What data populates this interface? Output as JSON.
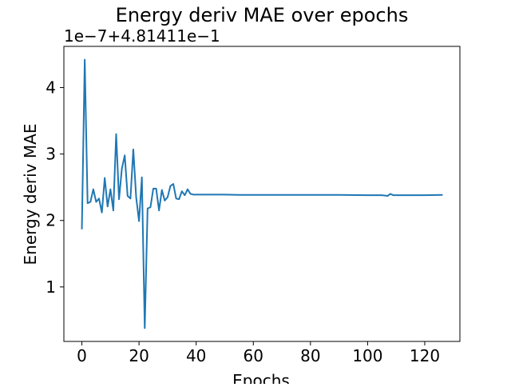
{
  "chart_data": {
    "type": "line",
    "title": "Energy deriv MAE over epochs",
    "xlabel": "Epochs",
    "ylabel": "Energy deriv MAE",
    "offset_label": "1e−7+4.81411e−1",
    "xlim": [
      -6.3,
      132.3
    ],
    "ylim": [
      0.18,
      4.62
    ],
    "x_ticks": [
      0,
      20,
      40,
      60,
      80,
      100,
      120
    ],
    "y_ticks": [
      1,
      2,
      3,
      4
    ],
    "grid": false,
    "line_color": "#1f77b4",
    "series": [
      {
        "x": [
          0,
          1,
          2,
          3,
          4,
          5,
          6,
          7,
          8,
          9,
          10,
          11,
          12,
          13,
          14,
          15,
          16,
          17,
          18,
          19,
          20,
          21,
          22,
          23,
          24,
          25,
          26,
          27,
          28,
          29,
          30,
          31,
          32,
          33,
          34,
          35,
          36,
          37,
          38,
          39,
          40,
          45,
          50,
          55,
          60,
          70,
          80,
          90,
          100,
          105,
          107,
          108,
          109,
          110,
          115,
          120,
          126
        ],
        "y": [
          1.88,
          4.42,
          2.26,
          2.28,
          2.47,
          2.28,
          2.33,
          2.12,
          2.64,
          2.21,
          2.47,
          2.15,
          3.3,
          2.32,
          2.78,
          2.98,
          2.37,
          2.33,
          3.07,
          2.35,
          1.99,
          2.65,
          0.38,
          2.18,
          2.2,
          2.48,
          2.48,
          2.15,
          2.46,
          2.3,
          2.35,
          2.52,
          2.55,
          2.33,
          2.32,
          2.44,
          2.38,
          2.47,
          2.4,
          2.39,
          2.39,
          2.39,
          2.39,
          2.385,
          2.385,
          2.385,
          2.385,
          2.385,
          2.38,
          2.38,
          2.37,
          2.4,
          2.38,
          2.38,
          2.38,
          2.38,
          2.385
        ]
      }
    ]
  }
}
